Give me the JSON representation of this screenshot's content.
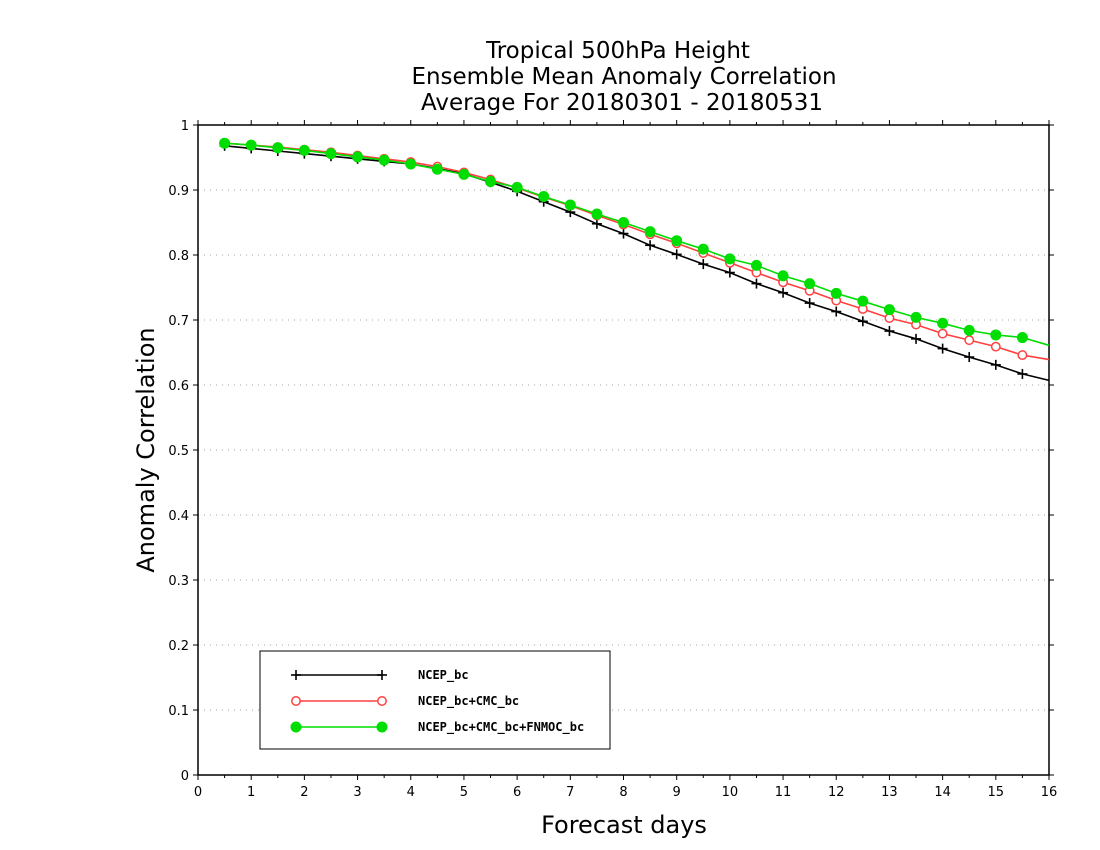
{
  "chart_data": {
    "type": "line",
    "title": [
      "Tropical 500hPa Height",
      "Ensemble Mean Anomaly Correlation",
      "Average For 20180301 - 20180531"
    ],
    "xlabel": "Forecast days",
    "ylabel": "Anomaly Correlation",
    "xlim": [
      0,
      16
    ],
    "ylim": [
      0,
      1
    ],
    "xticks": [
      "0",
      "1",
      "2",
      "3",
      "4",
      "5",
      "6",
      "7",
      "8",
      "9",
      "10",
      "11",
      "12",
      "13",
      "14",
      "15",
      "16"
    ],
    "yticks": [
      "0",
      "0.1",
      "0.2",
      "0.3",
      "0.4",
      "0.5",
      "0.6",
      "0.7",
      "0.8",
      "0.9",
      "1"
    ],
    "grid": "horizontal dotted",
    "legend_position": "bottom-left",
    "x": [
      0.5,
      1,
      1.5,
      2,
      2.5,
      3,
      3.5,
      4,
      4.5,
      5,
      5.5,
      6,
      6.5,
      7,
      7.5,
      8,
      8.5,
      9,
      9.5,
      10,
      10.5,
      11,
      11.5,
      12,
      12.5,
      13,
      13.5,
      14,
      14.5,
      15,
      15.5,
      16
    ],
    "series": [
      {
        "name": "NCEP_bc",
        "color": "#000000",
        "marker": "plus",
        "values": [
          0.968,
          0.964,
          0.96,
          0.956,
          0.952,
          0.948,
          0.944,
          0.94,
          0.933,
          0.925,
          0.912,
          0.898,
          0.882,
          0.866,
          0.848,
          0.833,
          0.815,
          0.801,
          0.786,
          0.773,
          0.756,
          0.742,
          0.726,
          0.713,
          0.698,
          0.683,
          0.671,
          0.656,
          0.643,
          0.631,
          0.617,
          0.607
        ]
      },
      {
        "name": "NCEP_bc+CMC_bc",
        "color": "#ff4040",
        "marker": "open-circle",
        "values": [
          0.972,
          0.969,
          0.966,
          0.962,
          0.958,
          0.953,
          0.948,
          0.943,
          0.936,
          0.927,
          0.916,
          0.903,
          0.889,
          0.876,
          0.861,
          0.847,
          0.832,
          0.818,
          0.803,
          0.788,
          0.773,
          0.758,
          0.745,
          0.73,
          0.717,
          0.703,
          0.693,
          0.679,
          0.669,
          0.659,
          0.646,
          0.639
        ]
      },
      {
        "name": "NCEP_bc+CMC_bc+FNMOC_bc",
        "color": "#00dd00",
        "marker": "filled-circle",
        "values": [
          0.972,
          0.969,
          0.965,
          0.961,
          0.956,
          0.951,
          0.946,
          0.94,
          0.932,
          0.924,
          0.913,
          0.904,
          0.89,
          0.877,
          0.863,
          0.85,
          0.836,
          0.822,
          0.809,
          0.794,
          0.784,
          0.768,
          0.756,
          0.741,
          0.729,
          0.716,
          0.704,
          0.695,
          0.684,
          0.677,
          0.673,
          0.661
        ]
      }
    ]
  }
}
